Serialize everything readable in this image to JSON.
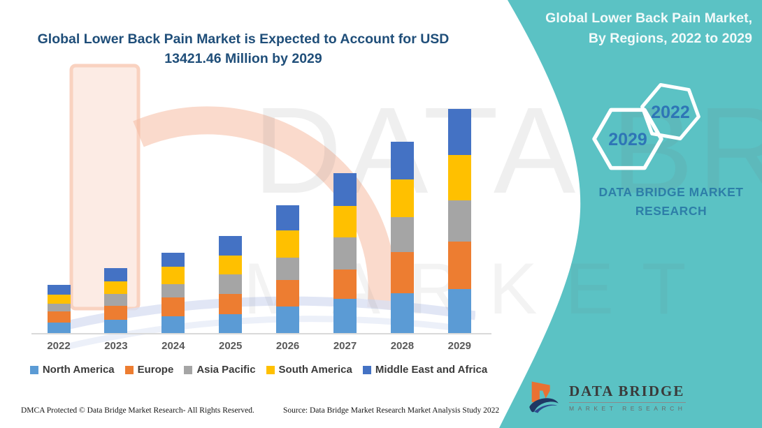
{
  "header": {
    "chart_title": "Global Lower Back Pain Market is Expected to Account for USD 13421.46 Million by 2029",
    "panel_title": "Global Lower Back Pain Market, By Regions, 2022 to 2029"
  },
  "hexagons": {
    "left_year": "2029",
    "right_year": "2022"
  },
  "brand": {
    "panel_line1": "DATA BRIDGE MARKET",
    "panel_line2": "RESEARCH",
    "logo_title": "DATA BRIDGE",
    "logo_subtitle": "MARKET RESEARCH"
  },
  "watermark": {
    "line1": "DATA BRIDGE",
    "line2": "MARKET RESEARCH"
  },
  "footer": {
    "left": "DMCA Protected © Data Bridge Market Research- All Rights Reserved.",
    "right": "Source: Data Bridge Market Research Market Analysis Study 2022"
  },
  "colors": {
    "teal": "#5BC2C4",
    "title_blue": "#1F4E79",
    "hex_year_blue": "#2E75B6",
    "panel_brand_blue": "#2D7EA8",
    "axis_gray": "#D9D9D9"
  },
  "chart_data": {
    "type": "bar",
    "stacked": true,
    "title": "Global Lower Back Pain Market is Expected to Account for USD 13421.46 Million by 2029",
    "xlabel": "",
    "ylabel": "",
    "value_unit": "USD Million",
    "grid": false,
    "legend_position": "bottom",
    "ylim": [
      0,
      14000
    ],
    "highlight_total_2029": 13421.46,
    "categories": [
      "2022",
      "2023",
      "2024",
      "2025",
      "2026",
      "2027",
      "2028",
      "2029"
    ],
    "series": [
      {
        "name": "North America",
        "color": "#5B9BD5",
        "values": [
          627,
          794,
          1003,
          1129,
          1588,
          2048,
          2383,
          2634
        ]
      },
      {
        "name": "Europe",
        "color": "#ED7D31",
        "values": [
          669,
          836,
          1129,
          1212,
          1588,
          1756,
          2466,
          2843
        ]
      },
      {
        "name": "Asia Pacific",
        "color": "#A5A5A5",
        "values": [
          460,
          711,
          794,
          1170,
          1338,
          1923,
          2090,
          2466
        ]
      },
      {
        "name": "South America",
        "color": "#FFC000",
        "values": [
          543,
          752,
          1045,
          1129,
          1630,
          1881,
          2257,
          2717
        ]
      },
      {
        "name": "Middle East and Africa",
        "color": "#4472C4",
        "values": [
          585,
          794,
          836,
          1170,
          1505,
          1965,
          2257,
          2761.46
        ]
      }
    ],
    "totals": [
      2884,
      3887,
      4807,
      5810,
      7649,
      9573,
      11453,
      13421.46
    ]
  }
}
